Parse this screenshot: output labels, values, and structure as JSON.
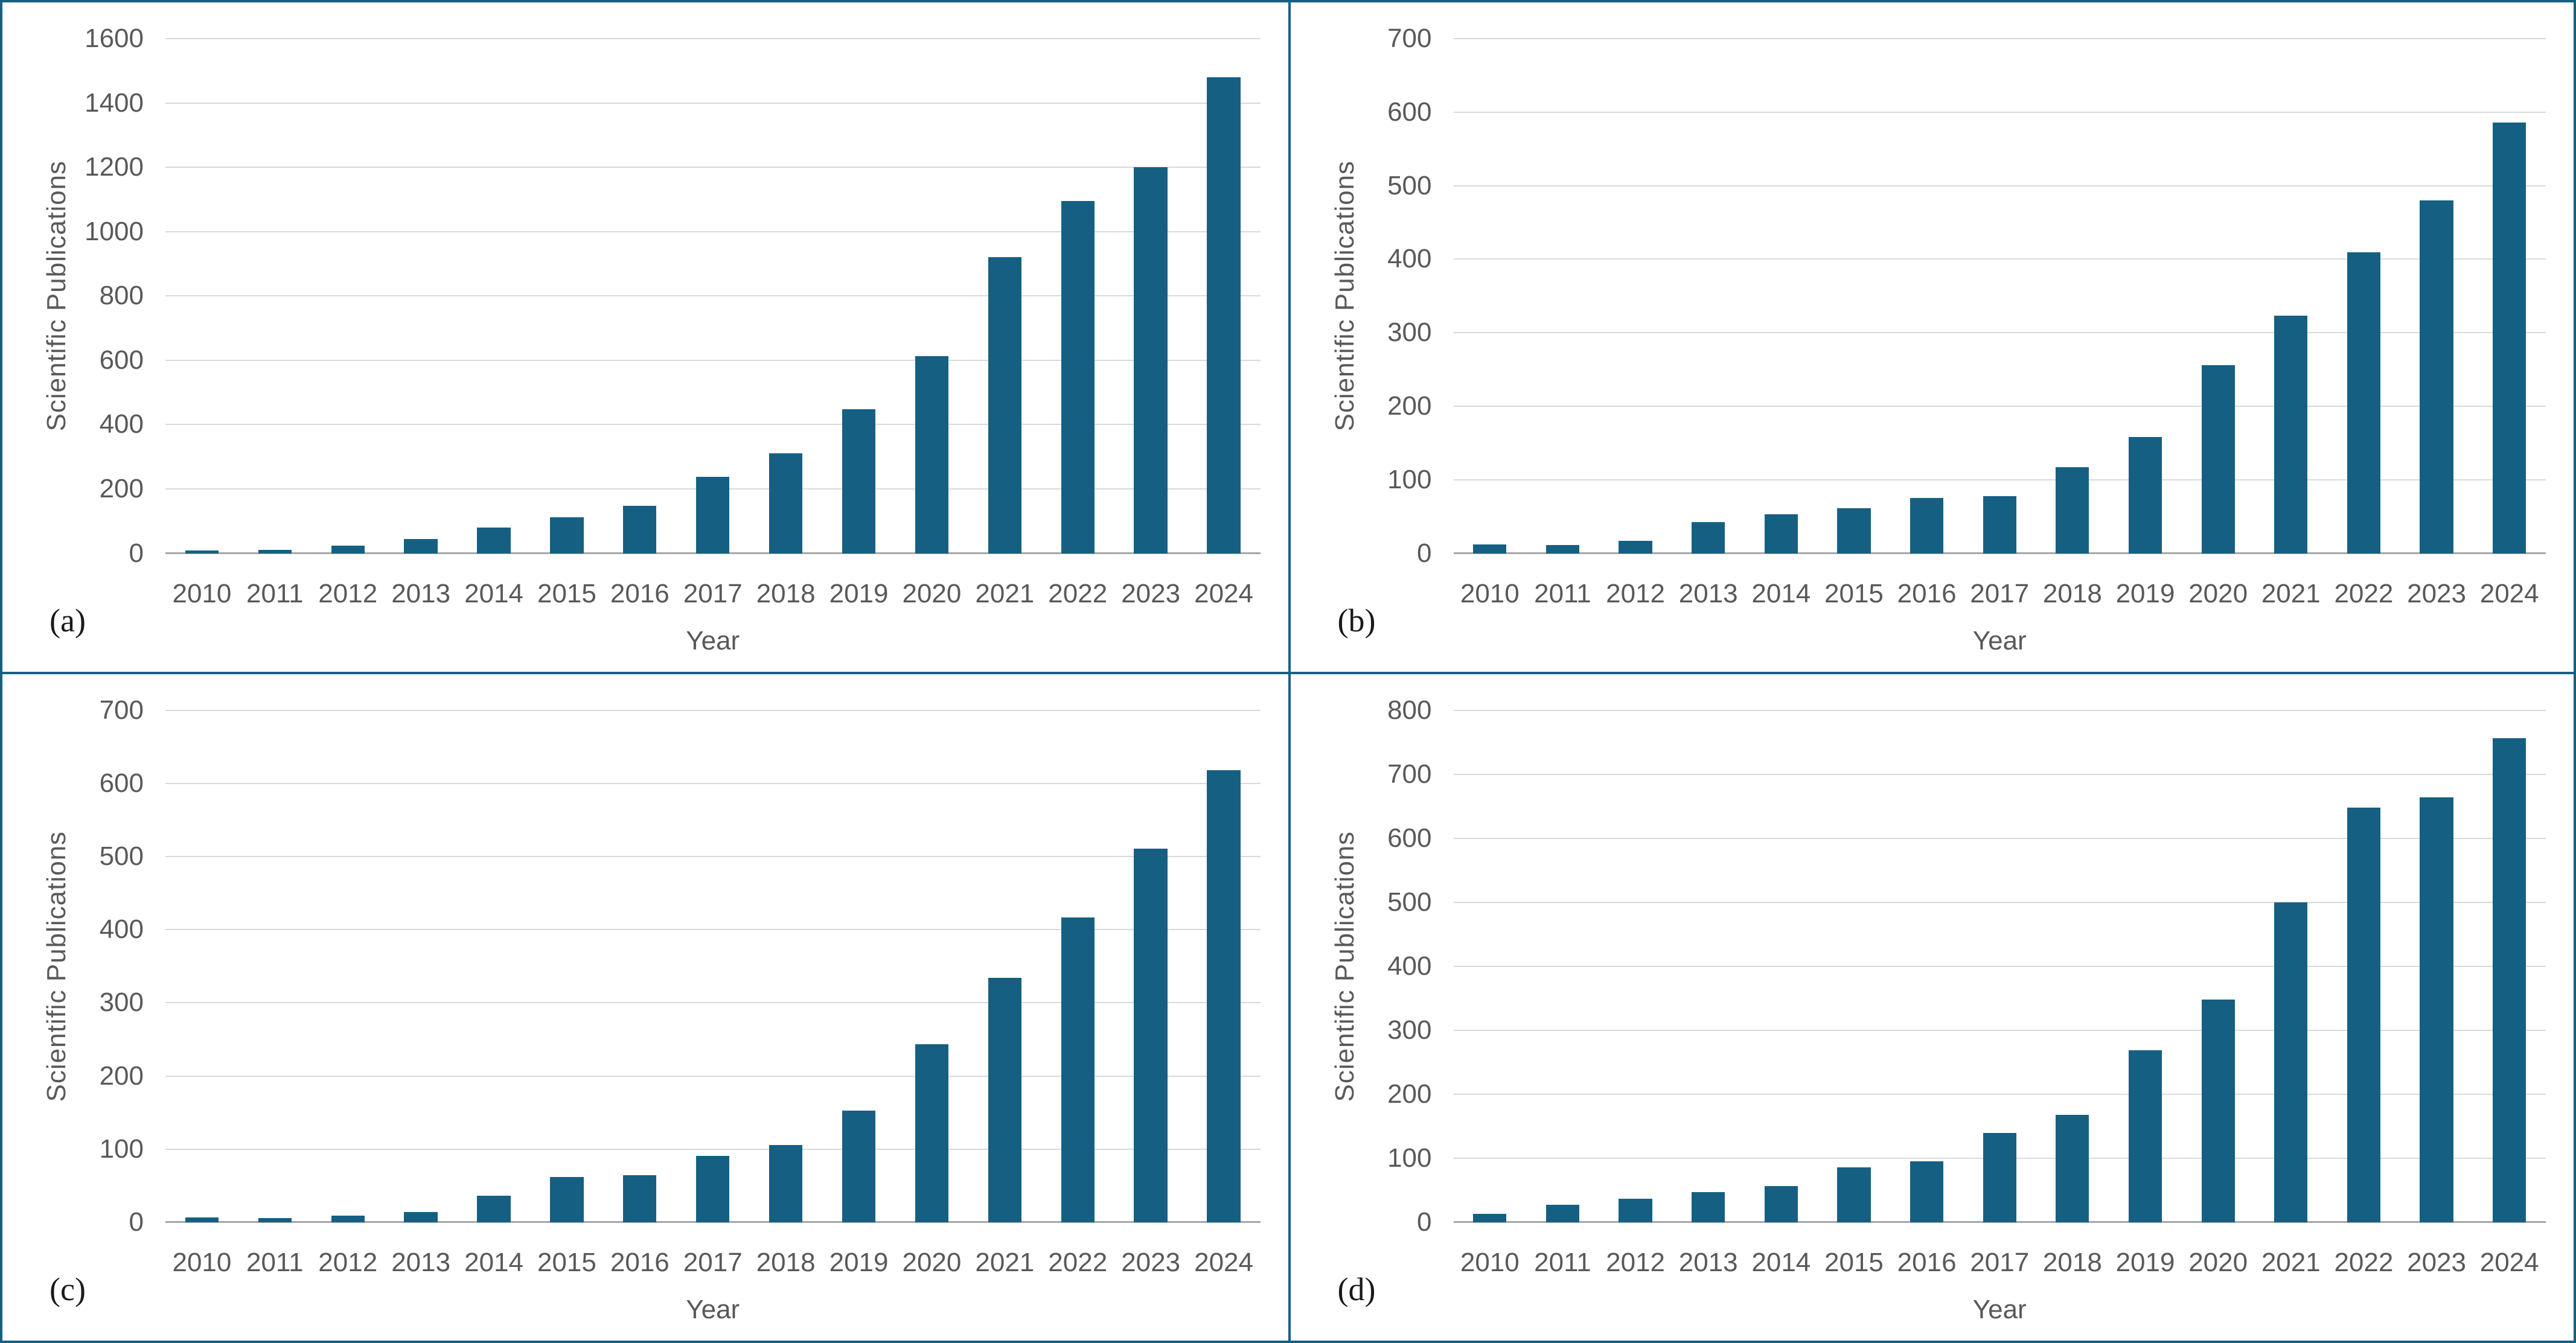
{
  "theme": {
    "bar_color": "#156082",
    "gridline_color": "#d9d9d9",
    "axis_line_color": "#a6a6a6",
    "tick_label_color": "#595959",
    "panel_border_color": "#156082",
    "background": "#ffffff"
  },
  "chart_data": [
    {
      "type": "bar",
      "label": "(a)",
      "xlabel": "Year",
      "ylabel": "Scientific Publications",
      "ylim": [
        0,
        1600
      ],
      "ytick_step": 200,
      "grid": true,
      "legend": "none",
      "categories": [
        "2010",
        "2011",
        "2012",
        "2013",
        "2014",
        "2015",
        "2016",
        "2017",
        "2018",
        "2019",
        "2020",
        "2021",
        "2022",
        "2023",
        "2024"
      ],
      "values": [
        8,
        10,
        24,
        45,
        80,
        112,
        148,
        238,
        310,
        448,
        612,
        920,
        1095,
        1200,
        1480
      ]
    },
    {
      "type": "bar",
      "label": "(b)",
      "xlabel": "Year",
      "ylabel": "Scientific Publications",
      "ylim": [
        0,
        700
      ],
      "ytick_step": 100,
      "grid": true,
      "legend": "none",
      "categories": [
        "2010",
        "2011",
        "2012",
        "2013",
        "2014",
        "2015",
        "2016",
        "2017",
        "2018",
        "2019",
        "2020",
        "2021",
        "2022",
        "2023",
        "2024"
      ],
      "values": [
        12,
        11,
        17,
        42,
        53,
        61,
        75,
        78,
        117,
        158,
        256,
        323,
        409,
        480,
        586
      ]
    },
    {
      "type": "bar",
      "label": "(c)",
      "xlabel": "Year",
      "ylabel": "Scientific Publications",
      "ylim": [
        0,
        700
      ],
      "ytick_step": 100,
      "grid": true,
      "legend": "none",
      "categories": [
        "2010",
        "2011",
        "2012",
        "2013",
        "2014",
        "2015",
        "2016",
        "2017",
        "2018",
        "2019",
        "2020",
        "2021",
        "2022",
        "2023",
        "2024"
      ],
      "values": [
        7,
        6,
        9,
        14,
        36,
        62,
        64,
        91,
        106,
        153,
        243,
        334,
        417,
        511,
        618
      ]
    },
    {
      "type": "bar",
      "label": "(d)",
      "xlabel": "Year",
      "ylabel": "Scientific Publications",
      "ylim": [
        0,
        800
      ],
      "ytick_step": 100,
      "grid": true,
      "legend": "none",
      "categories": [
        "2010",
        "2011",
        "2012",
        "2013",
        "2014",
        "2015",
        "2016",
        "2017",
        "2018",
        "2019",
        "2020",
        "2021",
        "2022",
        "2023",
        "2024"
      ],
      "values": [
        13,
        27,
        37,
        47,
        57,
        86,
        95,
        140,
        168,
        269,
        348,
        500,
        648,
        664,
        756
      ]
    }
  ]
}
